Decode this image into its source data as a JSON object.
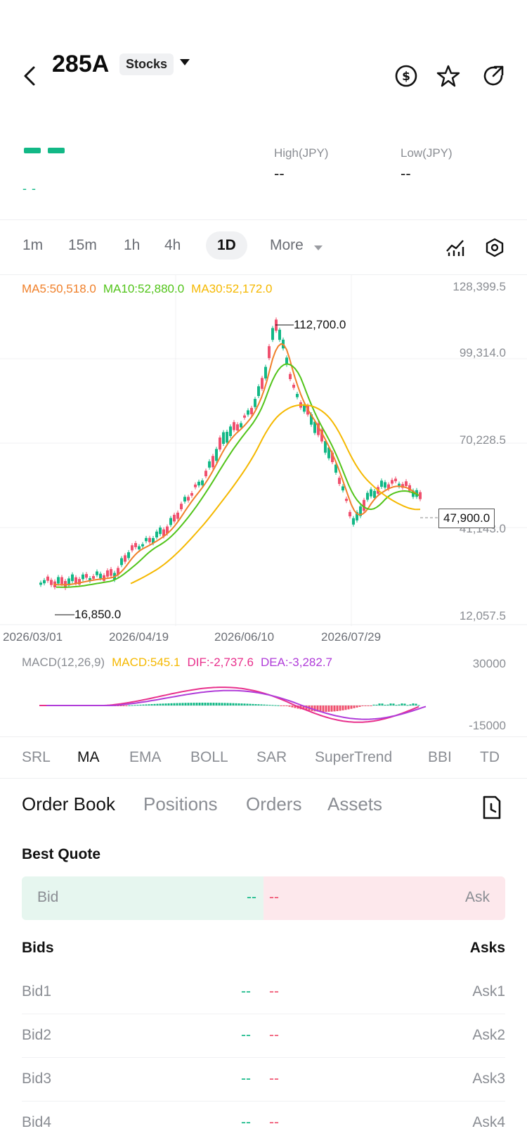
{
  "header": {
    "symbol": "285A",
    "type_label": "Stocks"
  },
  "quote": {
    "change_text": "- -",
    "high_label": "High(JPY)",
    "high_value": "--",
    "low_label": "Low(JPY)",
    "low_value": "--"
  },
  "timeframes": [
    "1m",
    "15m",
    "1h",
    "4h",
    "1D",
    "More"
  ],
  "active_timeframe": "1D",
  "ma_legend": {
    "ma5": "MA5:50,518.0",
    "ma10": "MA10:52,880.0",
    "ma30": "MA30:52,172.0"
  },
  "chart": {
    "price_ticks": [
      "128,399.5",
      "99,314.0",
      "70,228.5",
      "41,143.0",
      "12,057.5"
    ],
    "date_ticks": [
      "2026/03/01",
      "2026/04/19",
      "2026/06/10",
      "2026/07/29"
    ],
    "high_label": "112,700.0",
    "low_label": "16,850.0",
    "last_price": "47,900.0"
  },
  "chart_data": {
    "type": "line",
    "title": "",
    "ylim": [
      12057.5,
      128399.5
    ],
    "x": [
      "2026/03/01",
      "2026/04/19",
      "2026/06/10",
      "2026/07/29"
    ],
    "series": [
      {
        "name": "MA5",
        "color": "#f0802a"
      },
      {
        "name": "MA10",
        "color": "#52c41a"
      },
      {
        "name": "MA30",
        "color": "#f5b800"
      }
    ],
    "annotations": {
      "max": 112700.0,
      "min": 16850.0,
      "last": 47900.0
    }
  },
  "macd": {
    "label": "MACD(12,26,9)",
    "macd": "MACD:545.1",
    "dif": "DIF:-2,737.6",
    "dea": "DEA:-3,282.7",
    "axis_top": "30000",
    "axis_bottom": "-15000"
  },
  "indicators": [
    "SRL",
    "MA",
    "EMA",
    "BOLL",
    "SAR",
    "SuperTrend",
    "BBI",
    "TD"
  ],
  "active_indicator": "MA",
  "tabs": [
    "Order Book",
    "Positions",
    "Orders",
    "Assets"
  ],
  "active_tab": "Order Book",
  "order_book": {
    "best_quote_title": "Best Quote",
    "bid_label": "Bid",
    "ask_label": "Ask",
    "bid_value": "--",
    "ask_value": "--",
    "bids_header": "Bids",
    "asks_header": "Asks",
    "rows": [
      {
        "bid": "Bid1",
        "ask": "Ask1",
        "bid_val": "--",
        "ask_val": "--"
      },
      {
        "bid": "Bid2",
        "ask": "Ask2",
        "bid_val": "--",
        "ask_val": "--"
      },
      {
        "bid": "Bid3",
        "ask": "Ask3",
        "bid_val": "--",
        "ask_val": "--"
      },
      {
        "bid": "Bid4",
        "ask": "Ask4",
        "bid_val": "--",
        "ask_val": "--"
      }
    ]
  },
  "colors": {
    "up": "#12b886",
    "down": "#f0506e",
    "ma5": "#f0802a",
    "ma10": "#52c41a",
    "ma30": "#f5b800",
    "dif": "#e8308c",
    "dea": "#b03cd9"
  }
}
